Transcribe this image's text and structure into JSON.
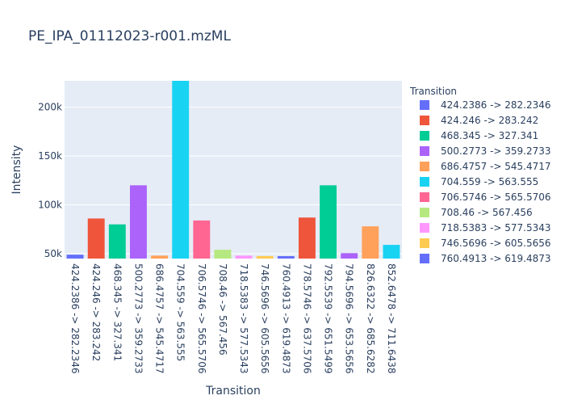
{
  "chart_data": {
    "type": "bar",
    "title": "PE_IPA_01112023-r001.mzML",
    "xlabel": "Transition",
    "ylabel": "Intensity",
    "ylim": [
      45000,
      227000
    ],
    "yticks": [
      50000,
      100000,
      150000,
      200000
    ],
    "ytick_labels": [
      "50k",
      "100k",
      "150k",
      "200k"
    ],
    "grid": true,
    "legend_title": "Transition",
    "legend_position": "right",
    "categories": [
      "424.2386 -> 282.2346",
      "424.246 -> 283.242",
      "468.345 -> 327.341",
      "500.2773 -> 359.2733",
      "686.4757 -> 545.4717",
      "704.559 -> 563.555",
      "706.5746 -> 565.5706",
      "708.46 -> 567.456",
      "718.5383 -> 577.5343",
      "746.5696 -> 605.5656",
      "760.4913 -> 619.4873",
      "778.5746 -> 637.5706",
      "792.5539 -> 651.5499",
      "794.5696 -> 653.5656",
      "826.6322 -> 685.6282",
      "852.6478 -> 711.6438"
    ],
    "values": [
      49000,
      86000,
      80000,
      120000,
      48000,
      227000,
      84000,
      54000,
      48000,
      47500,
      47500,
      87000,
      120000,
      50500,
      78000,
      59000
    ],
    "colors": [
      "#636efa",
      "#EF553B",
      "#00cc96",
      "#ab63fa",
      "#FFA15A",
      "#19d3f3",
      "#FF6692",
      "#B6E880",
      "#FF97FF",
      "#FECB52",
      "#636efa",
      "#EF553B",
      "#00cc96",
      "#ab63fa",
      "#FFA15A",
      "#19d3f3"
    ],
    "legend_entries": [
      "424.2386 -> 282.2346",
      "424.246 -> 283.242",
      "468.345 -> 327.341",
      "500.2773 -> 359.2733",
      "686.4757 -> 545.4717",
      "704.559 -> 563.555",
      "706.5746 -> 565.5706",
      "708.46 -> 567.456",
      "718.5383 -> 577.5343",
      "746.5696 -> 605.5656",
      "760.4913 -> 619.4873"
    ]
  }
}
